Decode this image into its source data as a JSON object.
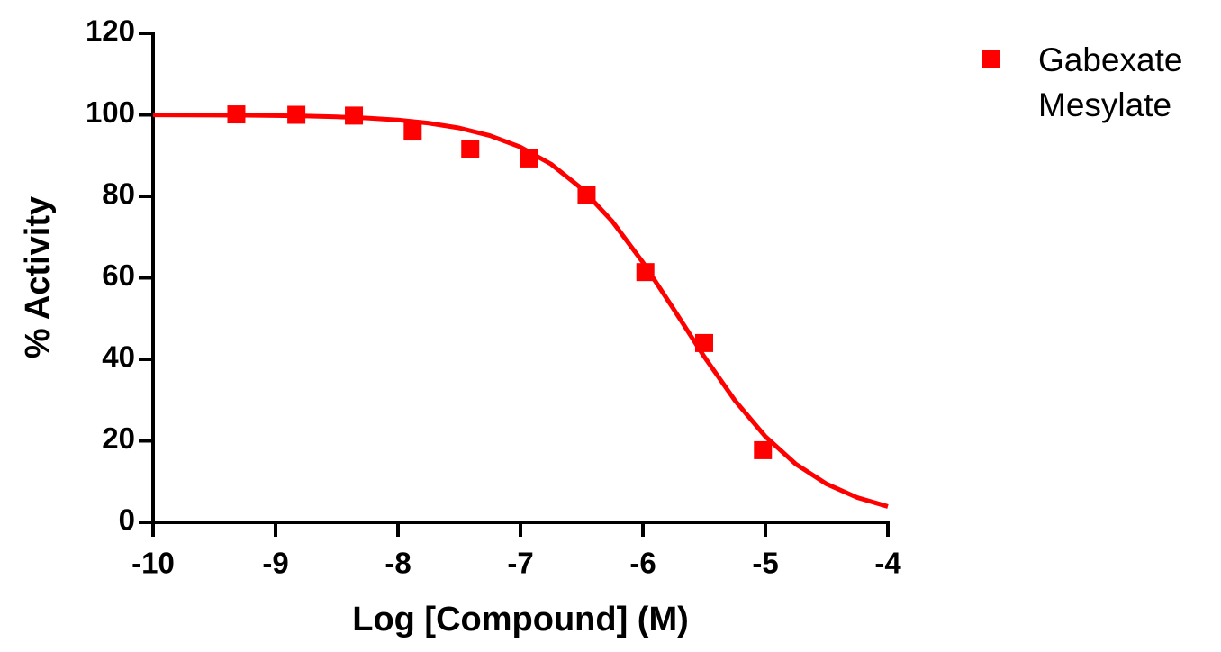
{
  "chart_data": {
    "type": "scatter",
    "xlabel": "Log [Compound] (M)",
    "ylabel": "% Activity",
    "xlim": [
      -10,
      -4
    ],
    "xticks": [
      -10,
      -9,
      -8,
      -7,
      -6,
      -5,
      -4
    ],
    "ylim": [
      0,
      120
    ],
    "yticks": [
      0,
      20,
      40,
      60,
      80,
      100,
      120
    ],
    "legend": "top-right",
    "series": [
      {
        "name": "Gabexate Mesylate",
        "color": "#ff0000",
        "x": [
          -9.32,
          -8.83,
          -8.36,
          -7.88,
          -7.41,
          -6.93,
          -6.46,
          -5.98,
          -5.5,
          -5.02
        ],
        "values": [
          100.1,
          100,
          99.8,
          95.9,
          91.7,
          89.3,
          80.4,
          61.4,
          44.0,
          17.7
        ],
        "fit": {
          "x": [
            -10,
            -9.75,
            -9.5,
            -9.25,
            -9,
            -8.75,
            -8.5,
            -8.25,
            -8,
            -7.75,
            -7.5,
            -7.25,
            -7,
            -6.75,
            -6.5,
            -6.25,
            -6,
            -5.75,
            -5.5,
            -5.25,
            -5,
            -4.75,
            -4.5,
            -4.25,
            -4
          ],
          "values": [
            99.97,
            99.95,
            99.92,
            99.88,
            99.8,
            99.69,
            99.5,
            99.2,
            98.72,
            97.96,
            96.77,
            94.91,
            92.09,
            87.9,
            81.9,
            73.85,
            63.78,
            52.36,
            40.67,
            29.95,
            21.05,
            14.26,
            9.4,
            6.08,
            3.88
          ]
        }
      }
    ]
  }
}
